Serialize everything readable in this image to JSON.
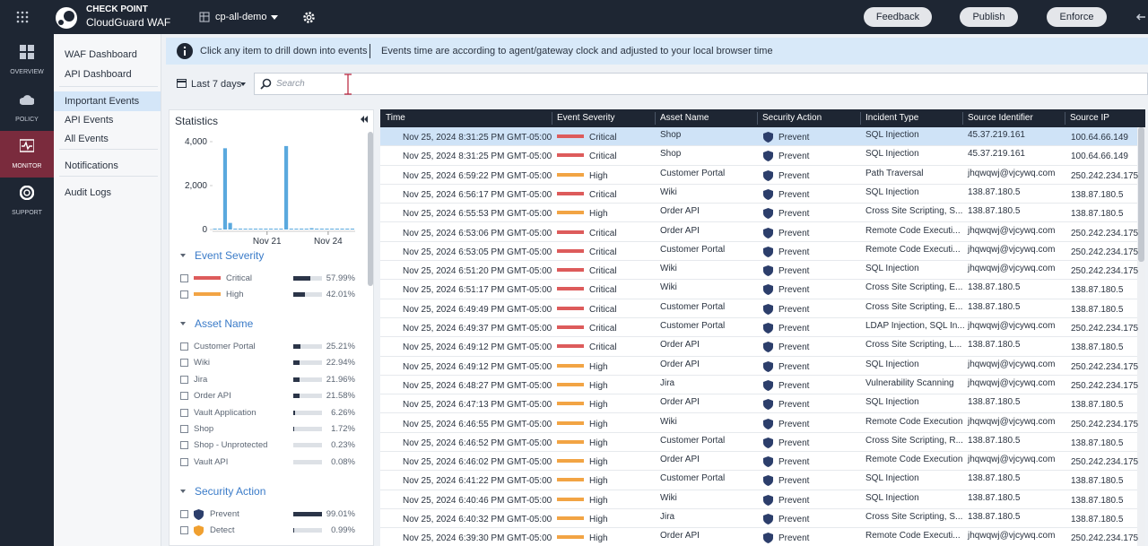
{
  "header": {
    "brand": "CHECK POINT",
    "product": "CloudGuard WAF",
    "workspace": "cp-all-demo",
    "buttons": [
      "Feedback",
      "Publish",
      "Enforce"
    ]
  },
  "nav": [
    "OVERVIEW",
    "POLICY",
    "MONITOR",
    "SUPPORT"
  ],
  "menu": [
    "WAF Dashboard",
    "API Dashboard",
    "Important Events",
    "API Events",
    "All Events",
    "Notifications",
    "Audit Logs"
  ],
  "banner": [
    "Click any item to drill down into events",
    "Events time are according to agent/gateway clock and adjusted to your local browser time"
  ],
  "filter": {
    "range": "Last 7 days",
    "search_placeholder": "Search"
  },
  "statistics": {
    "title": "Statistics",
    "chart": {
      "values": [
        0,
        0,
        3700,
        300,
        20,
        10,
        15,
        10,
        20,
        15,
        30,
        20,
        10,
        25,
        3800,
        40,
        20,
        30,
        15,
        60,
        20,
        30,
        40,
        20,
        25,
        30,
        40,
        20
      ],
      "xlim": [
        0,
        28
      ],
      "xticks": [
        {
          "value": 10.7,
          "label": "Nov 21"
        },
        {
          "value": 22.7,
          "label": "Nov 24"
        }
      ],
      "ylim": [
        0,
        4000
      ],
      "yticks": [
        0,
        {
          "value": 2000,
          "label": "2,000"
        },
        {
          "value": 4000,
          "label": "4,000"
        }
      ],
      "color": "#5aa9de"
    },
    "facets": [
      {
        "title": "Event Severity",
        "marker": "bar",
        "items": [
          {
            "name": "Critical",
            "color": "#dd5b5b",
            "percent": 57.99,
            "percent_label": "57.99%"
          },
          {
            "name": "High",
            "color": "#f2a444",
            "percent": 42.01,
            "percent_label": "42.01%"
          }
        ]
      },
      {
        "title": "Asset Name",
        "marker": "none",
        "items": [
          {
            "name": "Customer Portal",
            "percent": 25.21,
            "percent_label": "25.21%"
          },
          {
            "name": "Wiki",
            "percent": 22.94,
            "percent_label": "22.94%"
          },
          {
            "name": "Jira",
            "percent": 21.96,
            "percent_label": "21.96%"
          },
          {
            "name": "Order API",
            "percent": 21.58,
            "percent_label": "21.58%"
          },
          {
            "name": "Vault Application",
            "percent": 6.26,
            "percent_label": "6.26%"
          },
          {
            "name": "Shop",
            "percent": 1.72,
            "percent_label": "1.72%"
          },
          {
            "name": "Shop - Unprotected",
            "percent": 0.23,
            "percent_label": "0.23%"
          },
          {
            "name": "Vault API",
            "percent": 0.08,
            "percent_label": "0.08%"
          }
        ]
      },
      {
        "title": "Security Action",
        "marker": "shield",
        "items": [
          {
            "name": "Prevent",
            "color": "#2c3e6b",
            "percent": 99.01,
            "percent_label": "99.01%"
          },
          {
            "name": "Detect",
            "color": "#f0a030",
            "percent": 0.99,
            "percent_label": "0.99%"
          }
        ]
      }
    ]
  },
  "table": {
    "columns": [
      "Time",
      "Event Severity",
      "Asset Name",
      "Security Action",
      "Incident Type",
      "Source Identifier",
      "Source IP"
    ],
    "rows": [
      [
        "Nov 25, 2024 8:31:25 PM GMT-05:00",
        "Critical",
        "Shop",
        "Prevent",
        "SQL Injection",
        "45.37.219.161",
        "100.64.66.149"
      ],
      [
        "Nov 25, 2024 8:31:25 PM GMT-05:00",
        "Critical",
        "Shop",
        "Prevent",
        "SQL Injection",
        "45.37.219.161",
        "100.64.66.149"
      ],
      [
        "Nov 25, 2024 6:59:22 PM GMT-05:00",
        "High",
        "Customer Portal",
        "Prevent",
        "Path Traversal",
        "jhqwqwj@vjcywq.com",
        "250.242.234.175"
      ],
      [
        "Nov 25, 2024 6:56:17 PM GMT-05:00",
        "Critical",
        "Wiki",
        "Prevent",
        "SQL Injection",
        "138.87.180.5",
        "138.87.180.5"
      ],
      [
        "Nov 25, 2024 6:55:53 PM GMT-05:00",
        "High",
        "Order API",
        "Prevent",
        "Cross Site Scripting, S...",
        "138.87.180.5",
        "138.87.180.5"
      ],
      [
        "Nov 25, 2024 6:53:06 PM GMT-05:00",
        "Critical",
        "Order API",
        "Prevent",
        "Remote Code Executi...",
        "jhqwqwj@vjcywq.com",
        "250.242.234.175"
      ],
      [
        "Nov 25, 2024 6:53:05 PM GMT-05:00",
        "Critical",
        "Customer Portal",
        "Prevent",
        "Remote Code Executi...",
        "jhqwqwj@vjcywq.com",
        "250.242.234.175"
      ],
      [
        "Nov 25, 2024 6:51:20 PM GMT-05:00",
        "Critical",
        "Wiki",
        "Prevent",
        "SQL Injection",
        "jhqwqwj@vjcywq.com",
        "250.242.234.175"
      ],
      [
        "Nov 25, 2024 6:51:17 PM GMT-05:00",
        "Critical",
        "Wiki",
        "Prevent",
        "Cross Site Scripting, E...",
        "138.87.180.5",
        "138.87.180.5"
      ],
      [
        "Nov 25, 2024 6:49:49 PM GMT-05:00",
        "Critical",
        "Customer Portal",
        "Prevent",
        "Cross Site Scripting, E...",
        "138.87.180.5",
        "138.87.180.5"
      ],
      [
        "Nov 25, 2024 6:49:37 PM GMT-05:00",
        "Critical",
        "Customer Portal",
        "Prevent",
        "LDAP Injection, SQL In...",
        "jhqwqwj@vjcywq.com",
        "250.242.234.175"
      ],
      [
        "Nov 25, 2024 6:49:12 PM GMT-05:00",
        "Critical",
        "Order API",
        "Prevent",
        "Cross Site Scripting, L...",
        "138.87.180.5",
        "138.87.180.5"
      ],
      [
        "Nov 25, 2024 6:49:12 PM GMT-05:00",
        "High",
        "Order API",
        "Prevent",
        "SQL Injection",
        "jhqwqwj@vjcywq.com",
        "250.242.234.175"
      ],
      [
        "Nov 25, 2024 6:48:27 PM GMT-05:00",
        "High",
        "Jira",
        "Prevent",
        "Vulnerability Scanning",
        "jhqwqwj@vjcywq.com",
        "250.242.234.175"
      ],
      [
        "Nov 25, 2024 6:47:13 PM GMT-05:00",
        "High",
        "Order API",
        "Prevent",
        "SQL Injection",
        "138.87.180.5",
        "138.87.180.5"
      ],
      [
        "Nov 25, 2024 6:46:55 PM GMT-05:00",
        "High",
        "Wiki",
        "Prevent",
        "Remote Code Execution",
        "jhqwqwj@vjcywq.com",
        "250.242.234.175"
      ],
      [
        "Nov 25, 2024 6:46:52 PM GMT-05:00",
        "High",
        "Customer Portal",
        "Prevent",
        "Cross Site Scripting, R...",
        "138.87.180.5",
        "138.87.180.5"
      ],
      [
        "Nov 25, 2024 6:46:02 PM GMT-05:00",
        "High",
        "Order API",
        "Prevent",
        "Remote Code Execution",
        "jhqwqwj@vjcywq.com",
        "250.242.234.175"
      ],
      [
        "Nov 25, 2024 6:41:22 PM GMT-05:00",
        "High",
        "Customer Portal",
        "Prevent",
        "SQL Injection",
        "138.87.180.5",
        "138.87.180.5"
      ],
      [
        "Nov 25, 2024 6:40:46 PM GMT-05:00",
        "High",
        "Wiki",
        "Prevent",
        "SQL Injection",
        "138.87.180.5",
        "138.87.180.5"
      ],
      [
        "Nov 25, 2024 6:40:32 PM GMT-05:00",
        "High",
        "Jira",
        "Prevent",
        "Cross Site Scripting, S...",
        "138.87.180.5",
        "138.87.180.5"
      ],
      [
        "Nov 25, 2024 6:39:30 PM GMT-05:00",
        "High",
        "Order API",
        "Prevent",
        "Remote Code Executi...",
        "jhqwqwj@vjcywq.com",
        "250.242.234.175"
      ]
    ]
  }
}
